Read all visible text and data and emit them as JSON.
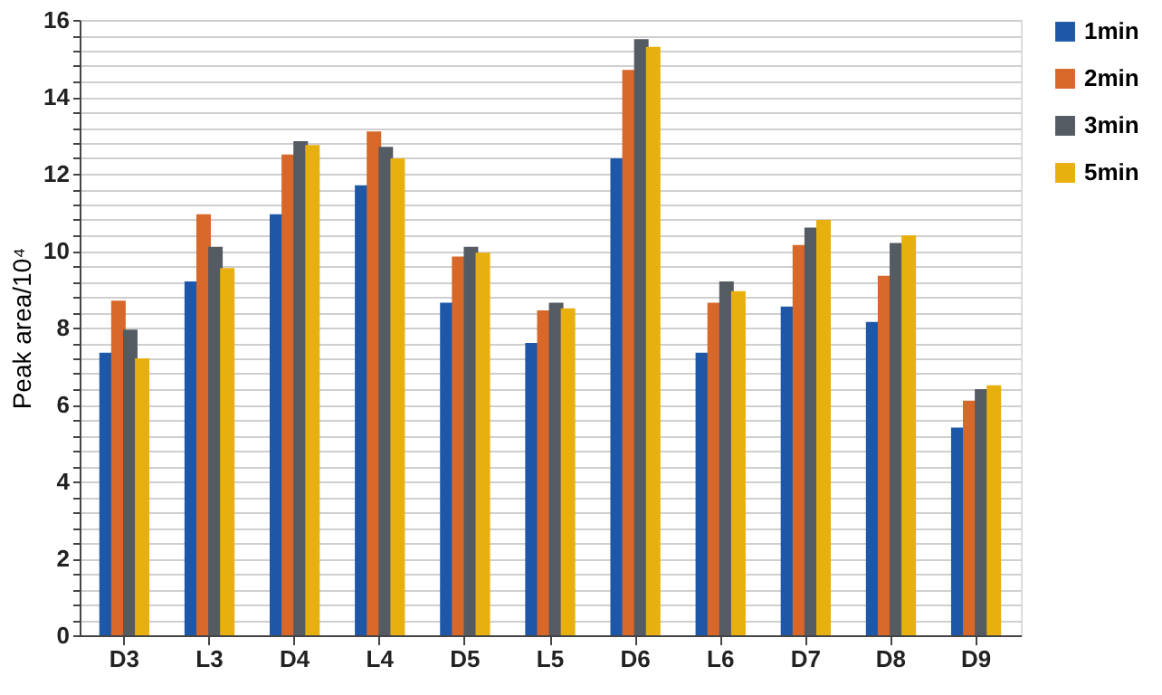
{
  "chart_data": {
    "type": "bar",
    "ylabel": "Peak area/10⁴",
    "categories": [
      "D3",
      "L3",
      "D4",
      "L4",
      "D5",
      "L5",
      "D6",
      "L6",
      "D7",
      "D8",
      "D9"
    ],
    "series": [
      {
        "name": "1min",
        "color": "#1f57a8",
        "values": [
          7.35,
          9.2,
          10.95,
          11.7,
          8.65,
          7.6,
          12.4,
          7.35,
          8.55,
          8.15,
          5.4
        ]
      },
      {
        "name": "2min",
        "color": "#d8672a",
        "values": [
          8.7,
          10.95,
          12.5,
          13.1,
          9.85,
          8.45,
          14.7,
          8.65,
          10.15,
          9.35,
          6.1
        ]
      },
      {
        "name": "3min",
        "color": "#555b63",
        "values": [
          7.95,
          10.1,
          12.85,
          12.7,
          10.1,
          8.65,
          15.5,
          9.2,
          10.6,
          10.2,
          6.4
        ]
      },
      {
        "name": "5min",
        "color": "#e8b00f",
        "values": [
          7.2,
          9.55,
          12.75,
          12.4,
          9.95,
          8.5,
          15.3,
          8.95,
          10.8,
          10.4,
          6.5
        ]
      }
    ],
    "ylim": [
      0,
      16
    ],
    "yticks": [
      0,
      {
        "value": 0.4,
        "label": null
      },
      {
        "value": 0.8,
        "label": null
      },
      {
        "value": 1.2,
        "label": null
      },
      {
        "value": 1.6,
        "label": null
      },
      2,
      {
        "value": 2.4,
        "label": null
      },
      {
        "value": 2.8,
        "label": null
      },
      {
        "value": 3.2,
        "label": null
      },
      {
        "value": 3.6,
        "label": null
      },
      4,
      {
        "value": 4.4,
        "label": null
      },
      {
        "value": 4.8,
        "label": null
      },
      {
        "value": 5.2,
        "label": null
      },
      {
        "value": 5.6,
        "label": null
      },
      6,
      {
        "value": 6.4,
        "label": null
      },
      {
        "value": 6.8,
        "label": null
      },
      {
        "value": 7.2,
        "label": null
      },
      {
        "value": 7.6,
        "label": null
      },
      8,
      {
        "value": 8.4,
        "label": null
      },
      {
        "value": 8.8,
        "label": null
      },
      {
        "value": 9.2,
        "label": null
      },
      {
        "value": 9.6,
        "label": null
      },
      10,
      {
        "value": 10.4,
        "label": null
      },
      {
        "value": 10.8,
        "label": null
      },
      {
        "value": 11.2,
        "label": null
      },
      {
        "value": 11.6,
        "label": null
      },
      12,
      {
        "value": 12.4,
        "label": null
      },
      {
        "value": 12.8,
        "label": null
      },
      {
        "value": 13.2,
        "label": null
      },
      {
        "value": 13.6,
        "label": null
      },
      14,
      {
        "value": 14.4,
        "label": null
      },
      {
        "value": 14.8,
        "label": null
      },
      {
        "value": 15.2,
        "label": null
      },
      {
        "value": 15.6,
        "label": null
      },
      16
    ],
    "grid": "y",
    "legend": "right"
  }
}
